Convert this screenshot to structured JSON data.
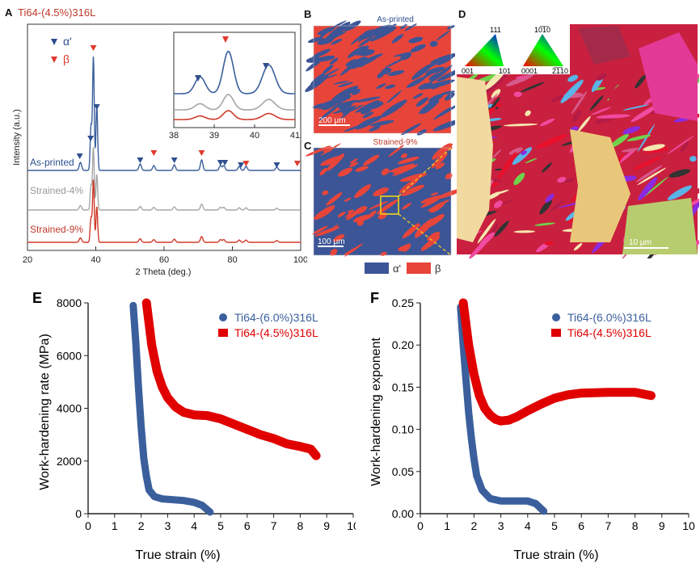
{
  "colors": {
    "alpha": "#2f4f8f",
    "beta": "#e03a2e",
    "strained4": "#a6a6a6",
    "title": "#c0392b",
    "blue_series": "#3a5f9c",
    "red_series": "#e00000"
  },
  "panelA": {
    "letter": "A",
    "title": "Ti64-(4.5%)316L",
    "ylabel": "Intensity (a.u.)",
    "xlabel": "2 Theta (deg.)",
    "xticks": [
      "20",
      "40",
      "60",
      "80",
      "100"
    ],
    "legend": [
      {
        "symbol": "α'",
        "marker": "alpha"
      },
      {
        "symbol": "β",
        "marker": "beta"
      }
    ],
    "curve_labels": [
      "As-printed",
      "Strained-4%",
      "Strained-9%"
    ],
    "inset_xticks": [
      "38",
      "39",
      "40",
      "41"
    ]
  },
  "panelB": {
    "letter": "B",
    "title": "As-printed",
    "scale": "200 μm"
  },
  "panelC": {
    "letter": "C",
    "title": "Strained-9%",
    "scale": "100 μm"
  },
  "phase_legend": {
    "alpha": "α'",
    "beta": "β"
  },
  "panelD": {
    "letter": "D",
    "ipf1": {
      "top": "111",
      "left": "001",
      "right": "101"
    },
    "ipf2": {
      "top": "10̅1̅0",
      "left": "0001",
      "right": "2̅1̅10"
    },
    "scale": "10 μm"
  },
  "chart_data": [
    {
      "type": "scatter",
      "panel": "E",
      "xlabel": "True strain (%)",
      "ylabel": "Work-hardening rate (MPa)",
      "xlim": [
        0,
        10
      ],
      "ylim": [
        0,
        8000
      ],
      "xticks": [
        "0",
        "1",
        "2",
        "3",
        "4",
        "5",
        "6",
        "7",
        "8",
        "9",
        "10"
      ],
      "yticks": [
        "0",
        "2000",
        "4000",
        "6000",
        "8000"
      ],
      "series": [
        {
          "name": "Ti64-(6.0%)316L",
          "x": [
            1.7,
            1.8,
            1.9,
            2.0,
            2.1,
            2.2,
            2.3,
            2.5,
            2.8,
            3.2,
            3.6,
            4.0,
            4.3,
            4.6
          ],
          "y": [
            7900,
            6500,
            4800,
            3300,
            2100,
            1400,
            900,
            650,
            560,
            530,
            500,
            430,
            320,
            60
          ]
        },
        {
          "name": "Ti64-(4.5%)316L",
          "x": [
            2.2,
            2.4,
            2.6,
            2.8,
            3.0,
            3.3,
            3.6,
            4.0,
            4.5,
            5.0,
            5.5,
            6.0,
            6.5,
            7.0,
            7.5,
            8.0,
            8.4,
            8.6
          ],
          "y": [
            8000,
            6400,
            5400,
            4800,
            4400,
            4050,
            3850,
            3750,
            3720,
            3600,
            3400,
            3200,
            3000,
            2850,
            2650,
            2550,
            2450,
            2200
          ]
        }
      ]
    },
    {
      "type": "scatter",
      "panel": "F",
      "xlabel": "True strain (%)",
      "ylabel": "Work-hardening exponent",
      "xlim": [
        0,
        10
      ],
      "ylim": [
        0,
        0.25
      ],
      "xticks": [
        "0",
        "1",
        "2",
        "3",
        "4",
        "5",
        "6",
        "7",
        "8",
        "9",
        "10"
      ],
      "yticks": [
        "0.00",
        "0.05",
        "0.10",
        "0.15",
        "0.20",
        "0.25"
      ],
      "series": [
        {
          "name": "Ti64-(6.0%)316L",
          "x": [
            1.5,
            1.6,
            1.7,
            1.8,
            1.9,
            2.0,
            2.1,
            2.3,
            2.6,
            3.0,
            3.5,
            4.0,
            4.3,
            4.6
          ],
          "y": [
            0.245,
            0.2,
            0.16,
            0.12,
            0.09,
            0.065,
            0.045,
            0.028,
            0.018,
            0.015,
            0.015,
            0.015,
            0.012,
            0.003
          ]
        },
        {
          "name": "Ti64-(4.5%)316L",
          "x": [
            1.6,
            1.8,
            2.0,
            2.2,
            2.4,
            2.6,
            2.8,
            3.0,
            3.3,
            3.6,
            4.0,
            4.5,
            5.0,
            5.5,
            6.0,
            7.0,
            8.0,
            8.6
          ],
          "y": [
            0.25,
            0.2,
            0.165,
            0.14,
            0.125,
            0.117,
            0.112,
            0.11,
            0.111,
            0.115,
            0.122,
            0.13,
            0.137,
            0.141,
            0.143,
            0.144,
            0.144,
            0.14
          ]
        }
      ]
    }
  ]
}
